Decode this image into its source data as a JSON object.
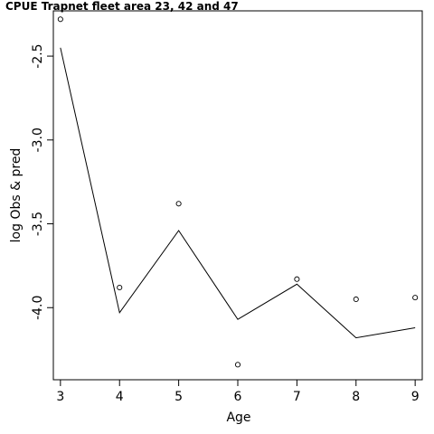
{
  "chart_data": {
    "type": "scatter",
    "title": "CPUE Trapnet fleet area 23, 42 and 47",
    "xlabel": "Age",
    "ylabel": "log Obs & pred",
    "xlim": [
      2.88,
      9.12
    ],
    "ylim": [
      -4.43,
      -2.23
    ],
    "x_ticks": [
      "3",
      "4",
      "5",
      "6",
      "7",
      "8",
      "9"
    ],
    "y_ticks": [
      "-2.5",
      "-3.0",
      "-3.5",
      "-4.0"
    ],
    "series": [
      {
        "marker": "open-circle",
        "x": [
          3,
          4,
          5,
          6,
          7,
          8,
          9
        ],
        "y": [
          -2.28,
          -3.88,
          -3.38,
          -4.34,
          -3.83,
          -3.95,
          -3.94
        ]
      },
      {
        "marker": "line",
        "x": [
          3,
          4,
          5,
          6,
          7,
          8,
          9
        ],
        "y": [
          -2.45,
          -4.03,
          -3.54,
          -4.07,
          -3.86,
          -4.18,
          -4.12
        ]
      }
    ],
    "grid": false,
    "legend": "none",
    "colors": {
      "points": "#000000",
      "line": "#000000"
    }
  }
}
